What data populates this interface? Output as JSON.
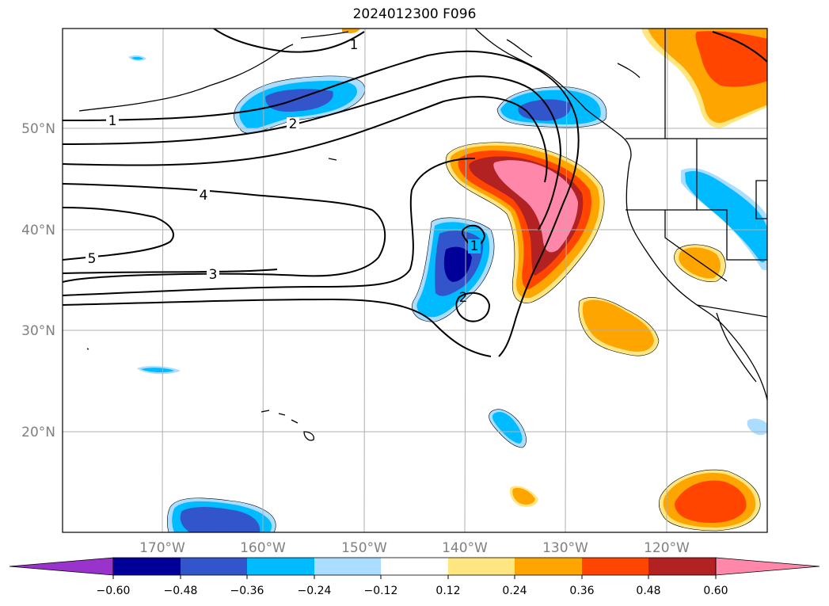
{
  "title": "2024012300 F096",
  "map": {
    "lat_labels": [
      "50°N",
      "40°N",
      "30°N",
      "20°N"
    ],
    "lon_labels": [
      "170°W",
      "160°W",
      "150°W",
      "140°W",
      "130°W",
      "120°W"
    ],
    "contour_labels": [
      "1",
      "2",
      "4",
      "5",
      "3",
      "1",
      "2",
      "1"
    ],
    "regions": [
      "North Pacific Ocean",
      "Alaska",
      "British Columbia",
      "US West Coast",
      "Baja California",
      "Hawaii"
    ]
  },
  "colorbar": {
    "ticks": [
      "−0.60",
      "−0.48",
      "−0.36",
      "−0.24",
      "−0.12",
      "0.12",
      "0.24",
      "0.36",
      "0.48",
      "0.60"
    ],
    "colors": [
      "#9933cc",
      "#000099",
      "#3355cc",
      "#00bbff",
      "#aaddff",
      "#ffffff",
      "#ffe680",
      "#ffa500",
      "#ff4500",
      "#b22222",
      "#ff88aa"
    ],
    "extend": "both"
  }
}
